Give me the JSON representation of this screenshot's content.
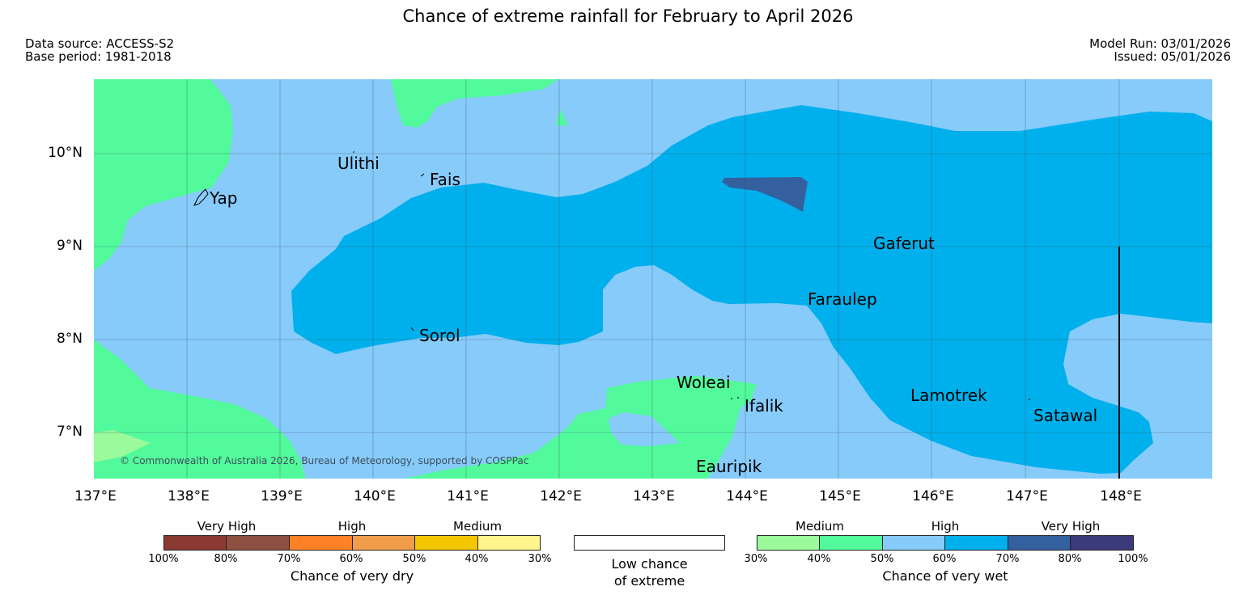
{
  "title": "Chance of extreme rainfall for February to April 2026",
  "meta": {
    "data_source": "Data source: ACCESS-S2",
    "base_period": "Base period: 1981-2018",
    "model_run": "Model Run: 03/01/2026",
    "issued": "Issued: 05/01/2026"
  },
  "copyright": "© Commonwealth of Australia 2026, Bureau of Meteorology, supported by COSPPac",
  "axes": {
    "lat_labels": [
      "10°N",
      "9°N",
      "8°N",
      "7°N"
    ],
    "lon_labels": [
      "137°E",
      "138°E",
      "139°E",
      "140°E",
      "141°E",
      "142°E",
      "143°E",
      "144°E",
      "145°E",
      "146°E",
      "147°E",
      "148°E"
    ]
  },
  "places": [
    "Ulithi",
    "Fais",
    "Yap",
    "Gaferut",
    "Faraulep",
    "Sorol",
    "Woleai",
    "Ifalik",
    "Lamotrek",
    "Satawal",
    "Eauripik"
  ],
  "legend": {
    "dry": {
      "bands": [
        "Very High",
        "High",
        "Medium"
      ],
      "ticks": [
        "100%",
        "80%",
        "70%",
        "60%",
        "50%",
        "40%",
        "30%"
      ],
      "colors": [
        "#8b3a32",
        "#8c5040",
        "#ff8126",
        "#ef9d4a",
        "#f2c500",
        "#fff58c"
      ],
      "caption": "Chance of very dry"
    },
    "neutral": {
      "caption_line1": "Low chance",
      "caption_line2": "of extreme",
      "color": "#ffffff"
    },
    "wet": {
      "bands": [
        "Medium",
        "High",
        "Very High"
      ],
      "ticks": [
        "30%",
        "40%",
        "50%",
        "60%",
        "70%",
        "80%",
        "100%"
      ],
      "colors": [
        "#9bfa9b",
        "#52fa9c",
        "#87cbfb",
        "#00b0ec",
        "#3560a0",
        "#3b3a7a"
      ],
      "caption": "Chance of very wet"
    }
  }
}
